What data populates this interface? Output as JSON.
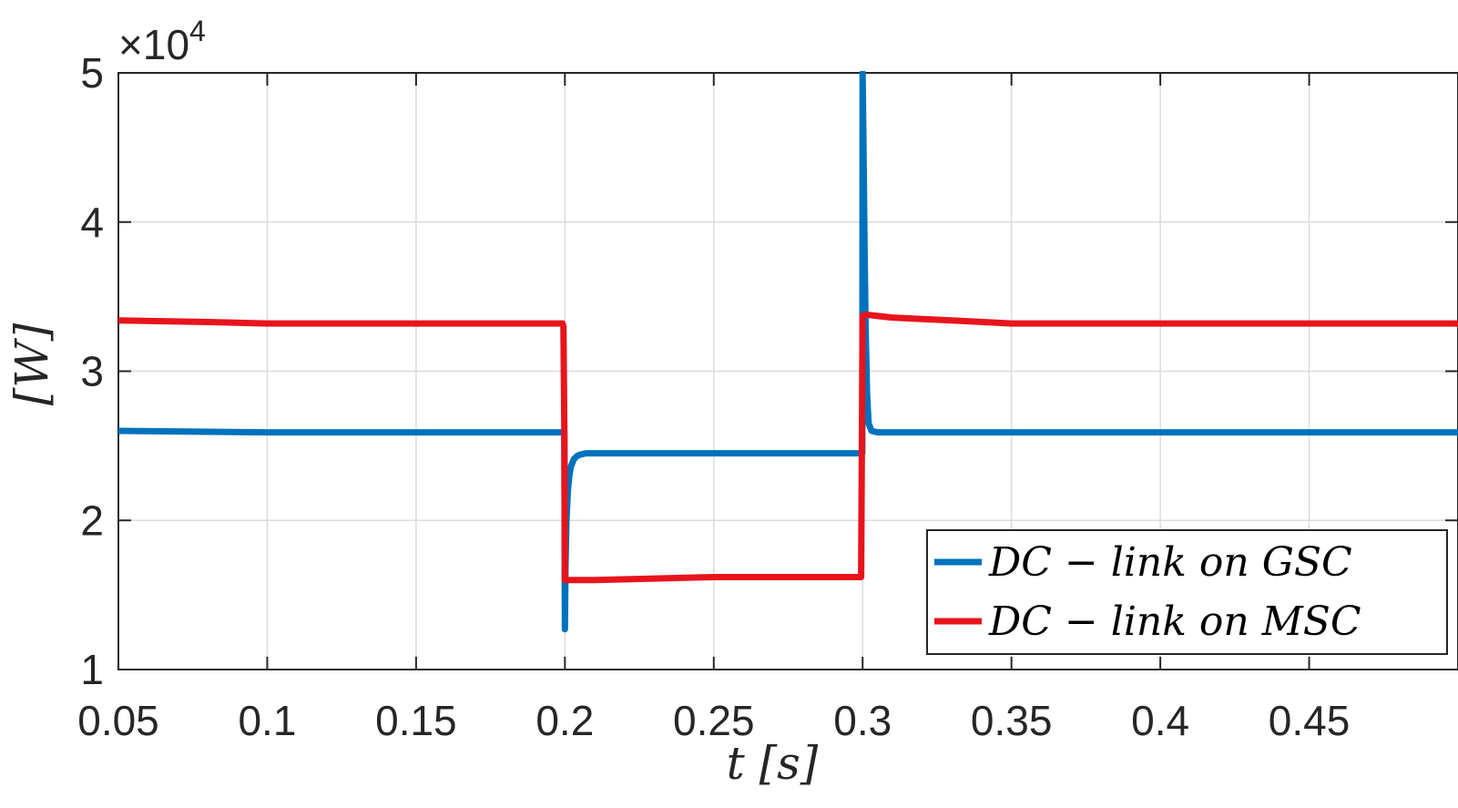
{
  "chart_data": {
    "type": "line",
    "xlabel": "t [s]",
    "ylabel": "[W]",
    "y_multiplier_text": "×10",
    "y_multiplier_exponent": "4",
    "xlim": [
      0.05,
      0.5
    ],
    "ylim": [
      1,
      5
    ],
    "x_ticks": [
      0.05,
      0.1,
      0.15,
      0.2,
      0.25,
      0.3,
      0.35,
      0.4,
      0.45
    ],
    "x_tick_labels": [
      "0.05",
      "0.1",
      "0.15",
      "0.2",
      "0.25",
      "0.3",
      "0.35",
      "0.4",
      "0.45"
    ],
    "y_ticks": [
      1,
      2,
      3,
      4,
      5
    ],
    "y_tick_labels": [
      "1",
      "2",
      "3",
      "4",
      "5"
    ],
    "grid": true,
    "legend_position": "bottom-right",
    "series": [
      {
        "name": "DC − link on GSC",
        "color": "#0072BD",
        "x": [
          0.05,
          0.1,
          0.15,
          0.1995,
          0.1998,
          0.2,
          0.2002,
          0.2005,
          0.201,
          0.2015,
          0.202,
          0.203,
          0.204,
          0.205,
          0.207,
          0.21,
          0.25,
          0.2999,
          0.3,
          0.3003,
          0.3006,
          0.301,
          0.3015,
          0.302,
          0.303,
          0.305,
          0.35,
          0.4,
          0.45,
          0.5
        ],
        "y": [
          2.6,
          2.59,
          2.59,
          2.59,
          2.59,
          1.27,
          1.7,
          2.0,
          2.2,
          2.3,
          2.36,
          2.41,
          2.43,
          2.44,
          2.45,
          2.45,
          2.45,
          2.45,
          5.0,
          4.5,
          3.9,
          3.3,
          2.85,
          2.65,
          2.6,
          2.59,
          2.59,
          2.59,
          2.59,
          2.59
        ]
      },
      {
        "name": "DC − link on MSC",
        "color": "#E8141C",
        "x": [
          0.05,
          0.08,
          0.1,
          0.15,
          0.199,
          0.1992,
          0.1995,
          0.1998,
          0.2,
          0.21,
          0.25,
          0.2995,
          0.3,
          0.301,
          0.305,
          0.31,
          0.32,
          0.33,
          0.35,
          0.4,
          0.45,
          0.5
        ],
        "y": [
          3.34,
          3.33,
          3.32,
          3.32,
          3.32,
          3.32,
          3.3,
          2.6,
          1.6,
          1.6,
          1.62,
          1.62,
          3.37,
          3.38,
          3.37,
          3.36,
          3.35,
          3.34,
          3.32,
          3.32,
          3.32,
          3.32
        ]
      }
    ]
  }
}
